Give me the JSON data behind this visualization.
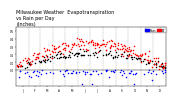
{
  "title": "Milwaukee Weather  Evapotranspiration\nvs Rain per Day\n(Inches)",
  "title_fontsize": 3.5,
  "background_color": "#ffffff",
  "ylim_main": [
    0.0,
    0.55
  ],
  "ylim_rain": [
    -0.15,
    0.0
  ],
  "legend_labels": [
    "Rain",
    "ET"
  ],
  "legend_colors": [
    "#0000ff",
    "#ff0000"
  ],
  "num_days": 365,
  "seed": 42,
  "month_days": [
    0,
    31,
    59,
    90,
    120,
    151,
    181,
    212,
    243,
    273,
    304,
    334,
    365
  ],
  "month_abbrs": [
    "J",
    "F",
    "M",
    "A",
    "M",
    "J",
    "J",
    "A",
    "S",
    "O",
    "N",
    "D"
  ],
  "dot_size": 1.2,
  "yticks": [
    0.0,
    0.1,
    0.2,
    0.3,
    0.4,
    0.5
  ],
  "ytick_fontsize": 2.0,
  "xtick_fontsize": 2.0
}
